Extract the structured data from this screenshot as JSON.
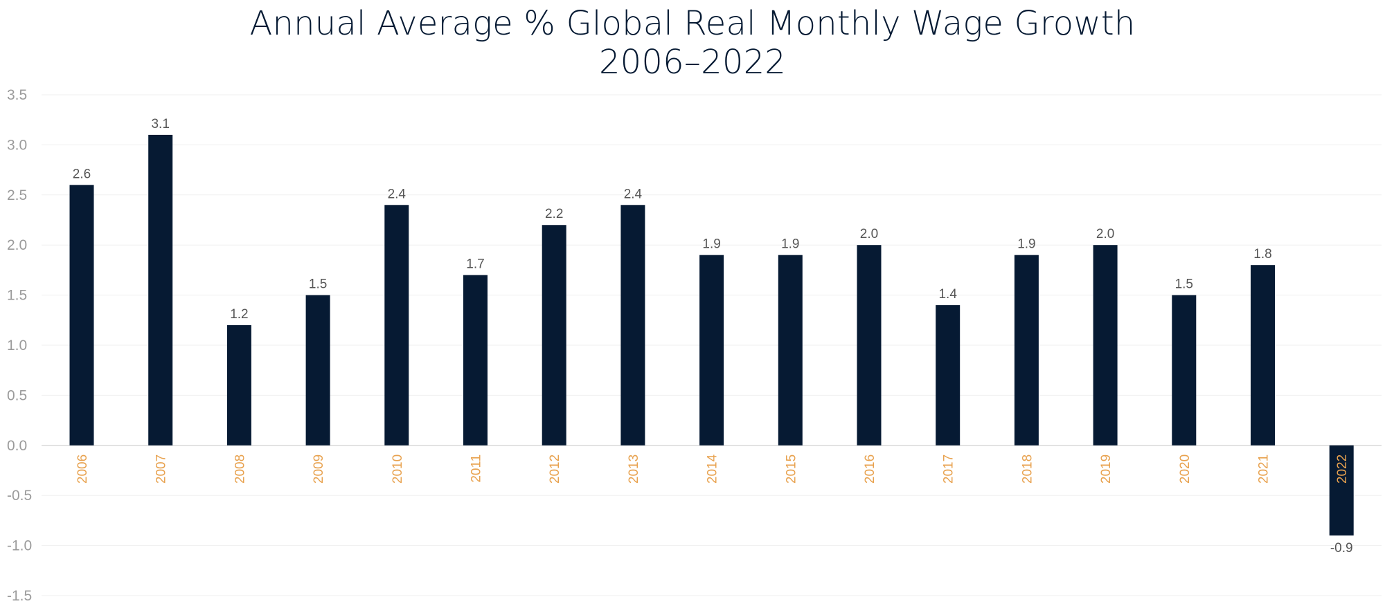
{
  "chart_data": {
    "type": "bar",
    "title": "Annual Average % Global Real Monthly Wage Growth",
    "subtitle": "2006–2022",
    "xlabel": "",
    "ylabel": "",
    "categories": [
      "2006",
      "2007",
      "2008",
      "2009",
      "2010",
      "2011",
      "2012",
      "2013",
      "2014",
      "2015",
      "2016",
      "2017",
      "2018",
      "2019",
      "2020",
      "2021",
      "2022"
    ],
    "values": [
      2.6,
      3.1,
      1.2,
      1.5,
      2.4,
      1.7,
      2.2,
      2.4,
      1.9,
      1.9,
      2.0,
      1.4,
      1.9,
      2.0,
      1.5,
      1.8,
      -0.9
    ],
    "data_labels": [
      "2.6",
      "3.1",
      "1.2",
      "1.5",
      "2.4",
      "1.7",
      "2.2",
      "2.4",
      "1.9",
      "1.9",
      "2.0",
      "1.4",
      "1.9",
      "2.0",
      "1.5",
      "1.8",
      "-0.9"
    ],
    "ylim": [
      -1.5,
      3.5
    ],
    "y_ticks": [
      "3.5",
      "3.0",
      "2.5",
      "2.0",
      "1.5",
      "1.0",
      "0.5",
      "0.0",
      "-0.5",
      "-1.0",
      "-1.5"
    ],
    "y_tick_values": [
      3.5,
      3.0,
      2.5,
      2.0,
      1.5,
      1.0,
      0.5,
      0.0,
      -0.5,
      -1.0,
      -1.5
    ],
    "grid": true,
    "legend": "none",
    "colors": {
      "bar": "#061a33",
      "title": "#061a33",
      "x_tick": "#e8a24f",
      "y_tick": "#9b9b9b",
      "data_label": "#555555",
      "grid": "#efefef"
    }
  }
}
